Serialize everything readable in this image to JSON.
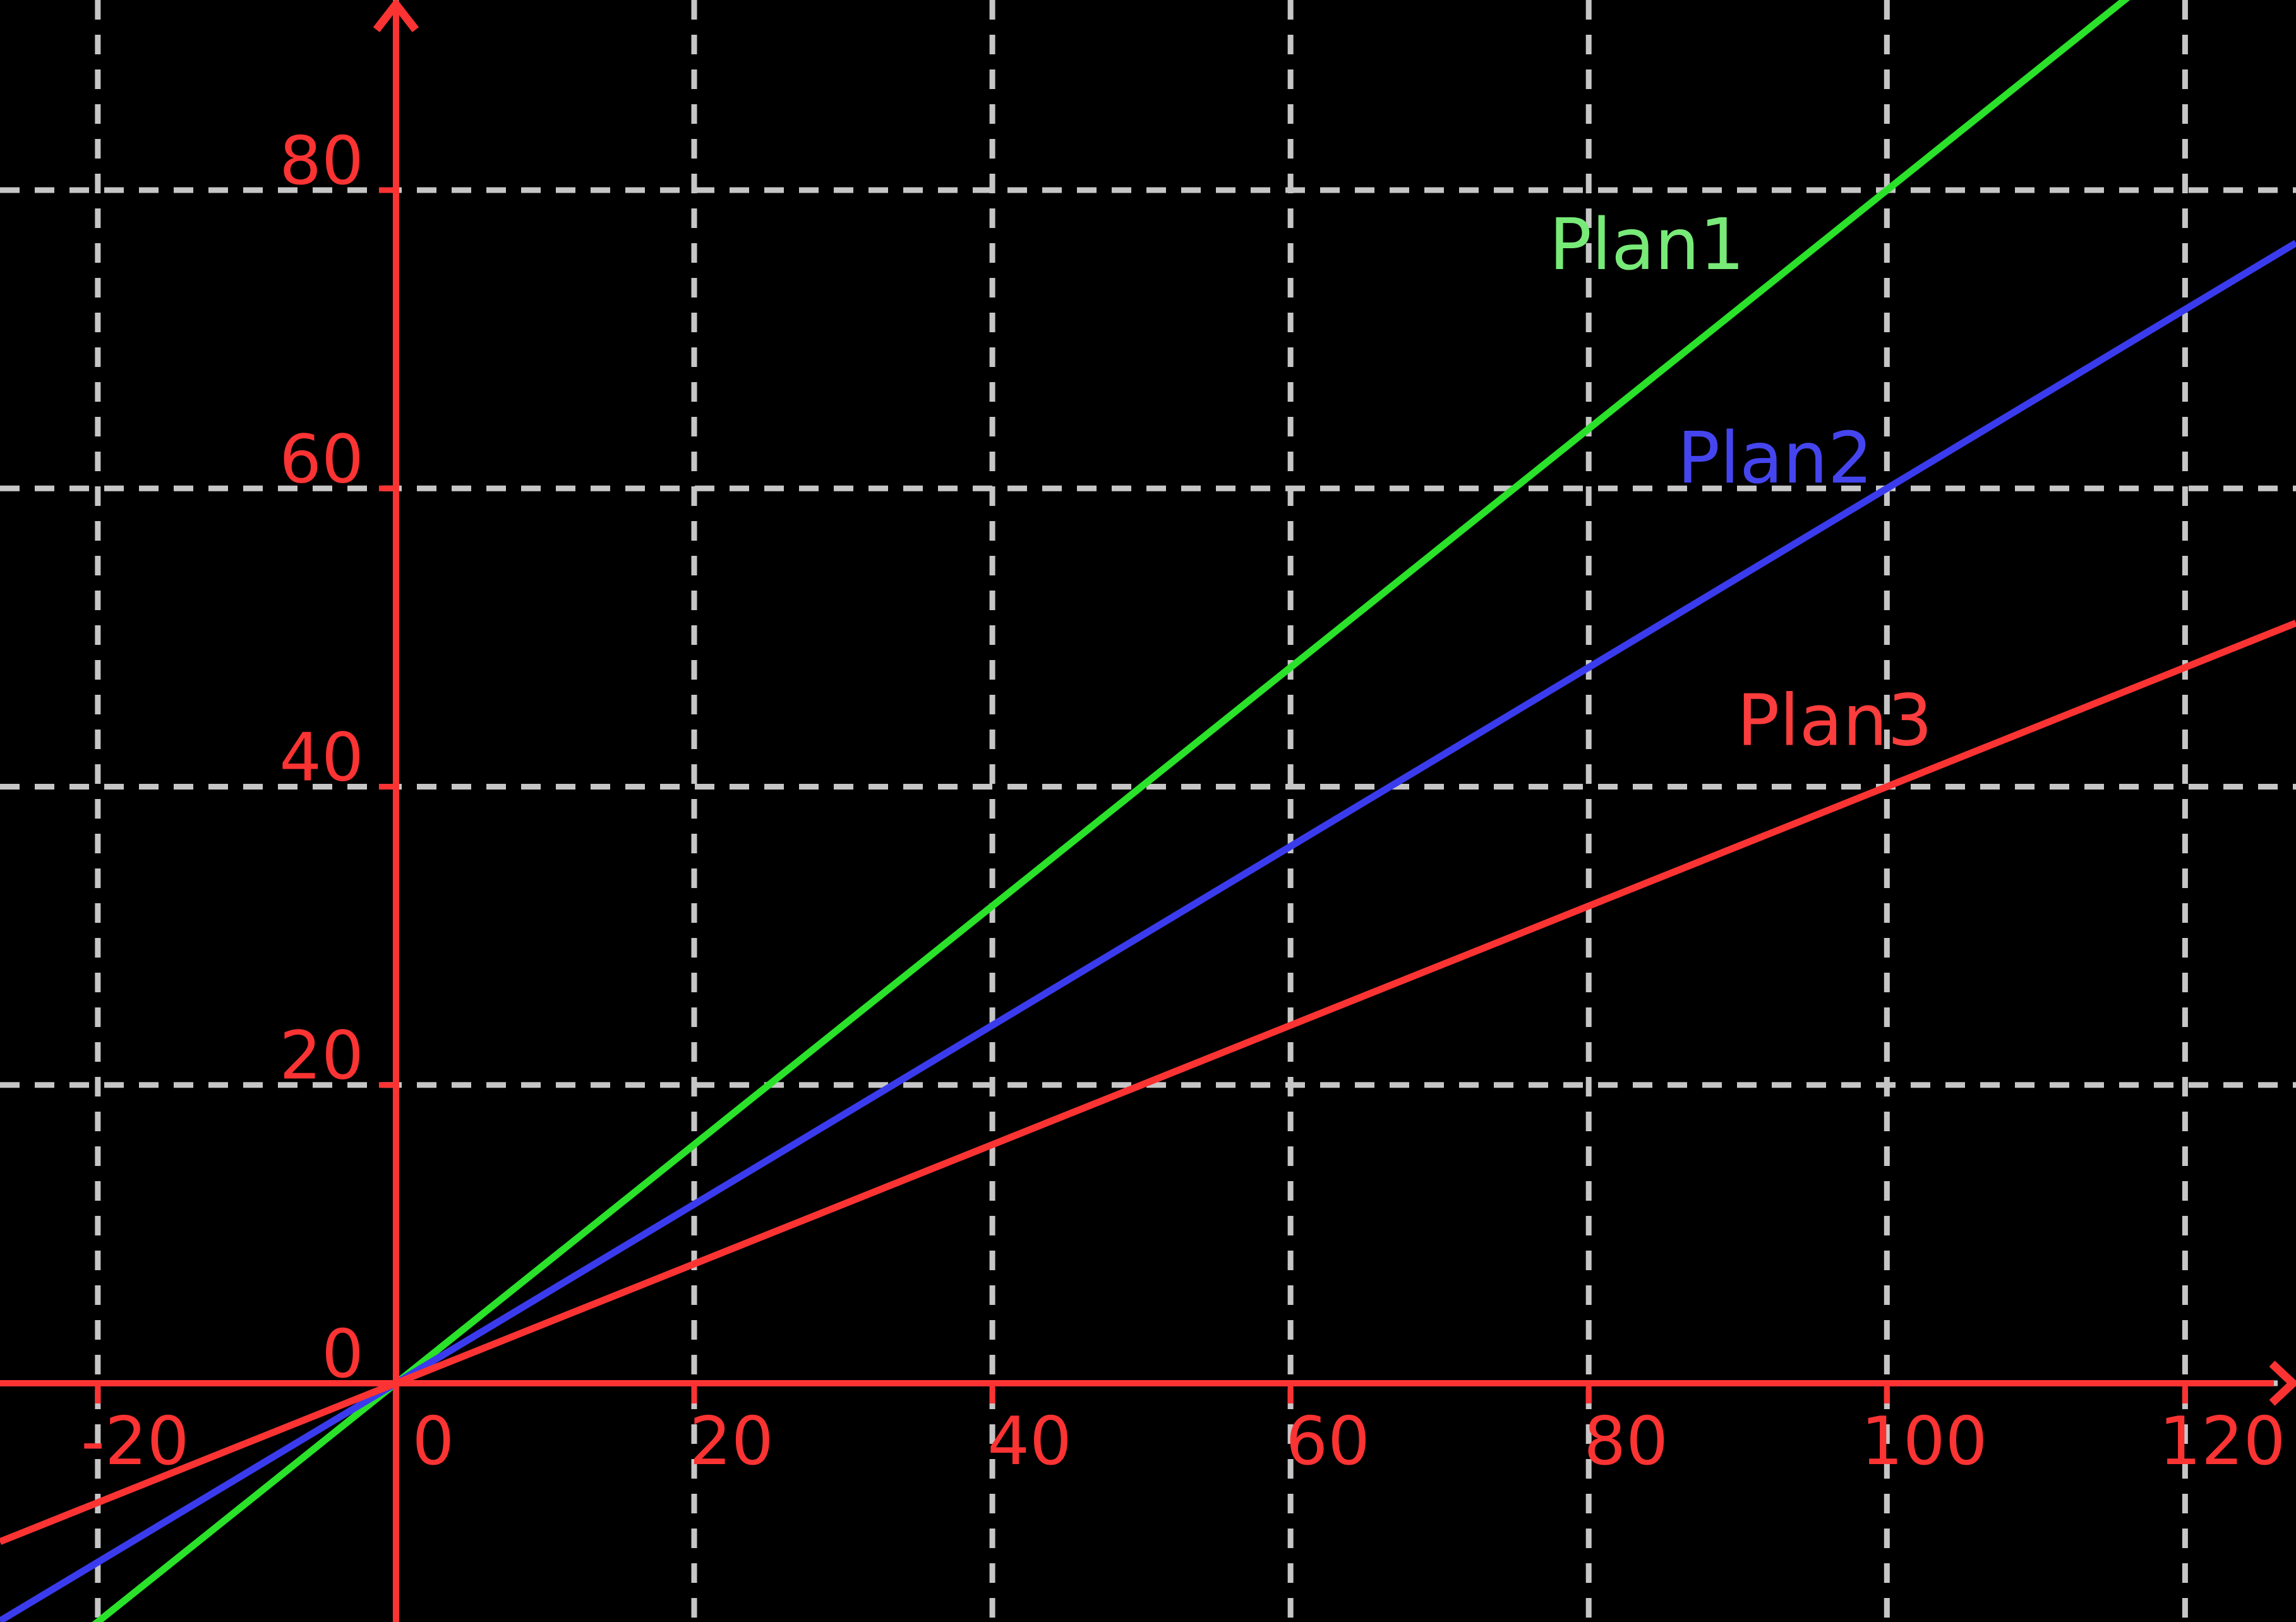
{
  "chart_data": {
    "type": "line",
    "title": "",
    "background_color": "#000000",
    "axes": {
      "color": "#fb3333",
      "x_range": [
        -26.56,
        127.44
      ],
      "y_range": [
        -16.01,
        92.75
      ],
      "x_ticks": [
        -20,
        0,
        20,
        40,
        60,
        80,
        100,
        120
      ],
      "x_tick_labels": [
        "-20",
        "0",
        "20",
        "40",
        "60",
        "80",
        "100",
        "120"
      ],
      "y_ticks": [
        0,
        20,
        40,
        60,
        80
      ],
      "y_tick_labels": [
        "0",
        "20",
        "40",
        "60",
        "80"
      ],
      "arrows": "positive-ends"
    },
    "grid": {
      "show": true,
      "style": "dashed",
      "color": "#c6c6c6",
      "dash": [
        31,
        24
      ]
    },
    "legend_position": "inline-labels-on-plot",
    "series": [
      {
        "name": "Plan1",
        "slope": 0.8,
        "intercept": 0,
        "color": "#2ae22a",
        "label_color": "#78ea78",
        "label_at": [
          83.9,
          74.7
        ],
        "points_sample": [
          [
            0,
            0
          ],
          [
            50,
            40
          ],
          [
            100,
            80
          ]
        ]
      },
      {
        "name": "Plan2",
        "slope": 0.6,
        "intercept": 0,
        "color": "#3b3bee",
        "label_color": "#4545f0",
        "label_at": [
          92.5,
          60.4
        ],
        "points_sample": [
          [
            0,
            0
          ],
          [
            50,
            30
          ],
          [
            100,
            60
          ]
        ]
      },
      {
        "name": "Plan3",
        "slope": 0.4,
        "intercept": 0,
        "color": "#fb3333",
        "label_color": "#fb3d3d",
        "label_at": [
          96.5,
          42.8
        ],
        "points_sample": [
          [
            0,
            0
          ],
          [
            50,
            20
          ],
          [
            100,
            40
          ]
        ]
      }
    ]
  }
}
